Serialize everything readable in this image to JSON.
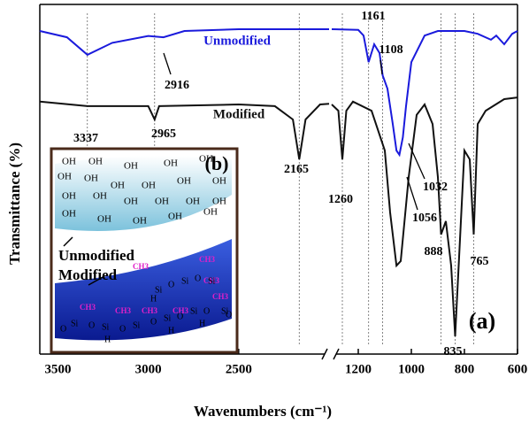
{
  "chart_data": {
    "type": "line",
    "x_label": "Wavenumbers (cm⁻¹)",
    "y_label": "Transmittance (%)",
    "panel_label": "(a)",
    "xlim": [
      3600,
      600
    ],
    "x_break": [
      2000,
      1300
    ],
    "xticks": [
      3500,
      3000,
      2500,
      1200,
      1000,
      800,
      600
    ],
    "ylim": [
      0,
      100
    ],
    "series": [
      {
        "name": "Unmodified",
        "color": "#1a1adc",
        "x": [
          3600,
          3450,
          3337,
          3200,
          3000,
          2916,
          2800,
          2500,
          2000,
          1300,
          1200,
          1180,
          1161,
          1140,
          1120,
          1108,
          1090,
          1070,
          1056,
          1045,
          1032,
          1020,
          1000,
          950,
          900,
          800,
          750,
          700,
          680,
          650,
          620,
          600
        ],
        "values": [
          92.4,
          90.6,
          85.6,
          89,
          91,
          90.6,
          92.4,
          92.9,
          92.9,
          92.9,
          92.7,
          91.1,
          83.5,
          88.6,
          86.1,
          79.7,
          75.9,
          65.8,
          58.2,
          57,
          62,
          70.9,
          83.5,
          91.1,
          92.4,
          92.4,
          91.6,
          89.9,
          91.1,
          88.6,
          91.6,
          92.4
        ]
      },
      {
        "name": "Modified",
        "color": "#111111",
        "x": [
          3600,
          3337,
          3000,
          2965,
          2940,
          2500,
          2300,
          2200,
          2165,
          2130,
          2050,
          2000,
          1300,
          1275,
          1260,
          1245,
          1220,
          1150,
          1100,
          1080,
          1056,
          1040,
          1010,
          980,
          950,
          920,
          900,
          888,
          870,
          850,
          835,
          820,
          800,
          780,
          765,
          750,
          720,
          650,
          600
        ],
        "values": [
          72.2,
          70.9,
          70.9,
          67.1,
          70.9,
          71.4,
          70.9,
          67.1,
          55.7,
          67.1,
          71.4,
          71.6,
          71.4,
          69.6,
          55.7,
          69.6,
          72.2,
          69.6,
          58.2,
          40.5,
          25.3,
          26.6,
          50.6,
          68.4,
          71.4,
          65.8,
          50.6,
          34.2,
          38,
          25.3,
          5.1,
          27.8,
          58.2,
          55.7,
          34.2,
          65.8,
          69.6,
          72.9,
          73.4
        ]
      }
    ],
    "peak_labels": [
      3337,
      2916,
      2965,
      2165,
      1260,
      1161,
      1108,
      1032,
      1056,
      888,
      765,
      835
    ],
    "inset": {
      "label": "(b)",
      "unmodified": "Unmodified",
      "modified": "Modified",
      "hydroxyl": "OH",
      "methyl": "CH3",
      "silicon": "Si",
      "oxygen": "O",
      "hydrogen": "H"
    }
  }
}
